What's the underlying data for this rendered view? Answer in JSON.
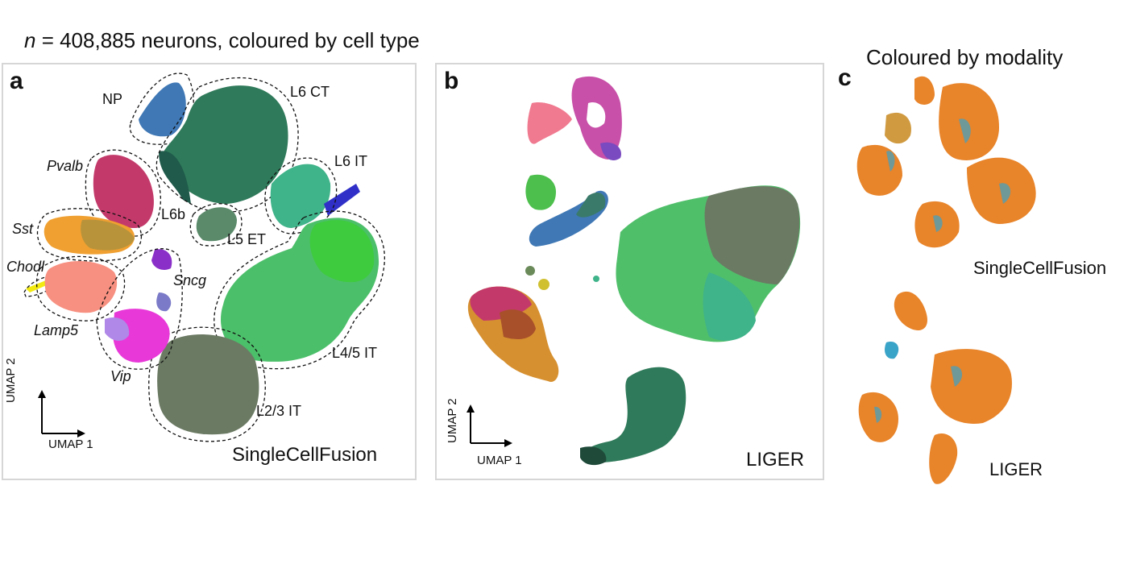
{
  "title": {
    "n_var": "n",
    "rest": " = 408,885 neurons, coloured by cell type"
  },
  "panel_c_title": "Coloured by modality",
  "panels": {
    "a": "a",
    "b": "b",
    "c": "c"
  },
  "methods": {
    "scf": "SingleCellFusion",
    "liger": "LIGER"
  },
  "axes": {
    "x": "UMAP 1",
    "y": "UMAP 2"
  },
  "cell_types": {
    "np": "NP",
    "l6ct": "L6 CT",
    "l6it": "L6 IT",
    "l6b": "L6b",
    "l5et": "L5 ET",
    "l45it": "L4/5 IT",
    "l23it": "L2/3 IT",
    "pvalb": "Pvalb",
    "sst": "Sst",
    "chodl": "Chodl",
    "sncg": "Sncg",
    "lamp5": "Lamp5",
    "vip": "Vip"
  },
  "colors": {
    "frame": "#d6d6d6",
    "np": "#3f78b5",
    "l6ct": "#2f7a5a",
    "l6it": "#3fb38a",
    "l6b": "#1f5a4a",
    "l5et": "#5a8a6a",
    "l45it": "#4cbf6a",
    "l23it": "#6b7a63",
    "pvalb": "#c33a6a",
    "sst": "#f0a030",
    "chodl": "#f2ea10",
    "sncg": "#8a30c8",
    "lamp5": "#f79080",
    "vip": "#e838d8",
    "modality_orange": "#e8842a",
    "modality_blue": "#3aa3c8"
  }
}
